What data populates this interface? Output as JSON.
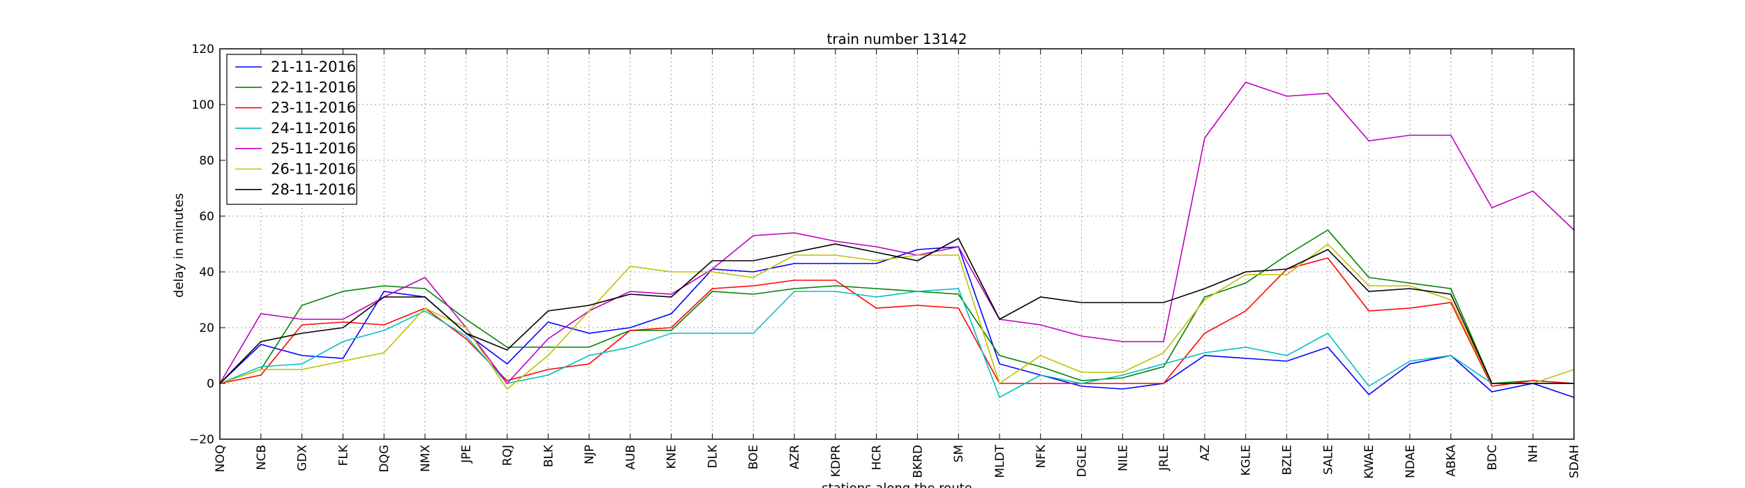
{
  "chart_data": {
    "type": "line",
    "title": "train number 13142",
    "xlabel": "stations along the route",
    "ylabel": "delay in minutes",
    "ylim": [
      -20,
      120
    ],
    "yticks": [
      -20,
      0,
      20,
      40,
      60,
      80,
      100,
      120
    ],
    "grid": true,
    "legend_position": "top-left",
    "categories": [
      "NOQ",
      "NCB",
      "GDX",
      "FLK",
      "DQG",
      "NMX",
      "JPE",
      "RQJ",
      "BLK",
      "NJP",
      "AUB",
      "KNE",
      "DLK",
      "BOE",
      "AZR",
      "KDPR",
      "HCR",
      "BKRD",
      "SM",
      "MLDT",
      "NFK",
      "DGLE",
      "NILE",
      "JRLE",
      "AZ",
      "KGLE",
      "BZLE",
      "SALE",
      "KWAE",
      "NDAE",
      "ABKA",
      "BDC",
      "NH",
      "SDAH"
    ],
    "series": [
      {
        "name": "21-11-2016",
        "color": "#0000ff",
        "values": [
          0,
          14,
          10,
          9,
          33,
          31,
          18,
          7,
          22,
          18,
          20,
          25,
          41,
          40,
          43,
          43,
          43,
          48,
          49,
          7,
          3,
          -1,
          -2,
          0,
          10,
          9,
          8,
          13,
          -4,
          7,
          10,
          -3,
          0,
          -5
        ]
      },
      {
        "name": "22-11-2016",
        "color": "#008000",
        "values": [
          0,
          5,
          28,
          33,
          35,
          34,
          23,
          13,
          13,
          13,
          19,
          19,
          33,
          32,
          34,
          35,
          34,
          33,
          32,
          10,
          6,
          1,
          2,
          6,
          31,
          36,
          46,
          55,
          38,
          36,
          34,
          0,
          1,
          0
        ]
      },
      {
        "name": "23-11-2016",
        "color": "#ff0000",
        "values": [
          0,
          3,
          21,
          22,
          21,
          27,
          16,
          1,
          5,
          7,
          19,
          20,
          34,
          35,
          37,
          37,
          27,
          28,
          27,
          0,
          0,
          0,
          0,
          0,
          18,
          26,
          41,
          45,
          26,
          27,
          29,
          -1,
          1,
          0
        ]
      },
      {
        "name": "24-11-2016",
        "color": "#00bfbf",
        "values": [
          0,
          6,
          7,
          15,
          19,
          26,
          17,
          0,
          3,
          10,
          13,
          18,
          18,
          18,
          33,
          33,
          31,
          33,
          34,
          -5,
          3,
          0,
          3,
          7,
          11,
          13,
          10,
          18,
          -1,
          8,
          10,
          0,
          0,
          0
        ]
      },
      {
        "name": "25-11-2016",
        "color": "#bf00bf",
        "values": [
          0,
          25,
          23,
          23,
          31,
          38,
          20,
          0,
          16,
          26,
          33,
          32,
          41,
          53,
          54,
          51,
          49,
          46,
          49,
          23,
          21,
          17,
          15,
          15,
          88,
          108,
          103,
          104,
          87,
          89,
          89,
          63,
          69,
          55
        ]
      },
      {
        "name": "26-11-2016",
        "color": "#bfbf00",
        "values": [
          0,
          5,
          5,
          8,
          11,
          27,
          20,
          -2,
          10,
          26,
          42,
          40,
          40,
          38,
          46,
          46,
          44,
          46,
          46,
          0,
          10,
          4,
          4,
          11,
          30,
          39,
          39,
          50,
          35,
          35,
          30,
          0,
          0,
          5
        ]
      },
      {
        "name": "28-11-2016",
        "color": "#000000",
        "values": [
          0,
          15,
          18,
          20,
          31,
          31,
          18,
          12,
          26,
          28,
          32,
          31,
          44,
          44,
          47,
          50,
          47,
          44,
          52,
          23,
          31,
          29,
          29,
          29,
          34,
          40,
          41,
          48,
          33,
          34,
          32,
          0,
          0,
          0
        ]
      }
    ]
  }
}
